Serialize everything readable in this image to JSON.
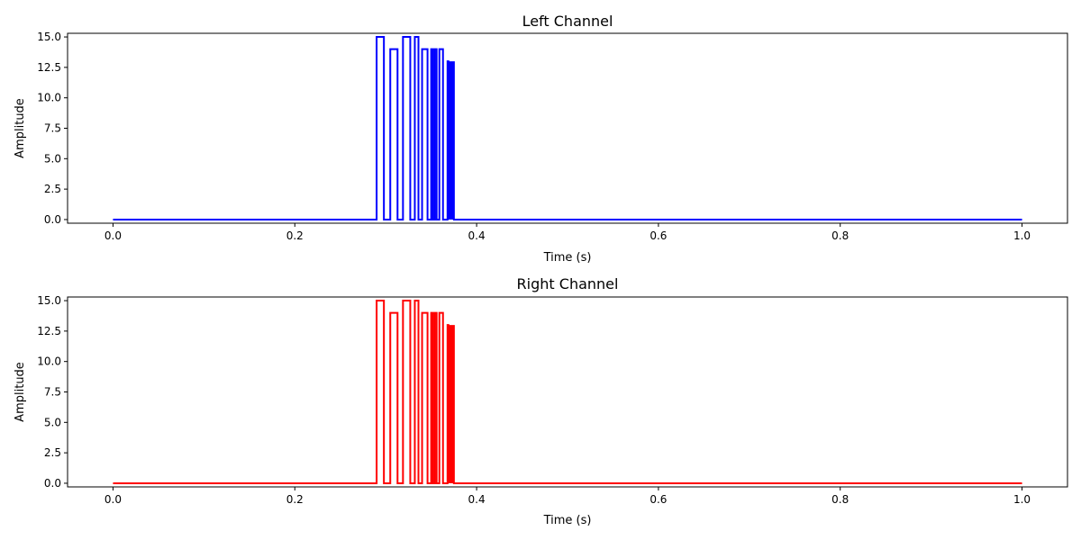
{
  "chart_data": [
    {
      "type": "line",
      "title": "Left Channel",
      "xlabel": "Time (s)",
      "ylabel": "Amplitude",
      "xlim": [
        -0.05,
        1.05
      ],
      "ylim": [
        -0.3,
        15.3
      ],
      "xticks": [
        0.0,
        0.2,
        0.4,
        0.6,
        0.8,
        1.0
      ],
      "xtick_labels": [
        "0.0",
        "0.2",
        "0.4",
        "0.6",
        "0.8",
        "1.0"
      ],
      "yticks": [
        0.0,
        2.5,
        5.0,
        7.5,
        10.0,
        12.5,
        15.0
      ],
      "ytick_labels": [
        "0.0",
        "2.5",
        "5.0",
        "7.5",
        "10.0",
        "12.5",
        "15.0"
      ],
      "grid": false,
      "series": [
        {
          "color": "#0000ff",
          "x": [
            0.0,
            0.29,
            0.29,
            0.298,
            0.298,
            0.305,
            0.305,
            0.313,
            0.313,
            0.319,
            0.319,
            0.327,
            0.327,
            0.332,
            0.332,
            0.336,
            0.336,
            0.34,
            0.34,
            0.346,
            0.346,
            0.35,
            0.35,
            0.352,
            0.352,
            0.354,
            0.354,
            0.356,
            0.356,
            0.359,
            0.359,
            0.363,
            0.363,
            0.368,
            0.368,
            0.369,
            0.369,
            0.371,
            0.371,
            0.373,
            0.373,
            0.375,
            0.375,
            1.0
          ],
          "y": [
            0,
            0,
            15,
            15,
            0,
            0,
            14,
            14,
            0,
            0,
            15,
            15,
            0,
            0,
            15,
            15,
            0,
            0,
            14,
            14,
            0,
            0,
            14,
            14,
            0,
            0,
            14,
            14,
            0,
            0,
            14,
            14,
            0,
            0,
            13,
            13,
            0,
            13,
            0,
            13,
            0,
            13,
            0,
            0
          ]
        }
      ]
    },
    {
      "type": "line",
      "title": "Right Channel",
      "xlabel": "Time (s)",
      "ylabel": "Amplitude",
      "xlim": [
        -0.05,
        1.05
      ],
      "ylim": [
        -0.3,
        15.3
      ],
      "xticks": [
        0.0,
        0.2,
        0.4,
        0.6,
        0.8,
        1.0
      ],
      "xtick_labels": [
        "0.0",
        "0.2",
        "0.4",
        "0.6",
        "0.8",
        "1.0"
      ],
      "yticks": [
        0.0,
        2.5,
        5.0,
        7.5,
        10.0,
        12.5,
        15.0
      ],
      "ytick_labels": [
        "0.0",
        "2.5",
        "5.0",
        "7.5",
        "10.0",
        "12.5",
        "15.0"
      ],
      "grid": false,
      "series": [
        {
          "color": "#ff0000",
          "x": [
            0.0,
            0.29,
            0.29,
            0.298,
            0.298,
            0.305,
            0.305,
            0.313,
            0.313,
            0.319,
            0.319,
            0.327,
            0.327,
            0.332,
            0.332,
            0.336,
            0.336,
            0.34,
            0.34,
            0.346,
            0.346,
            0.35,
            0.35,
            0.352,
            0.352,
            0.354,
            0.354,
            0.356,
            0.356,
            0.359,
            0.359,
            0.363,
            0.363,
            0.368,
            0.368,
            0.369,
            0.369,
            0.371,
            0.371,
            0.373,
            0.373,
            0.375,
            0.375,
            1.0
          ],
          "y": [
            0,
            0,
            15,
            15,
            0,
            0,
            14,
            14,
            0,
            0,
            15,
            15,
            0,
            0,
            15,
            15,
            0,
            0,
            14,
            14,
            0,
            0,
            14,
            14,
            0,
            0,
            14,
            14,
            0,
            0,
            14,
            14,
            0,
            0,
            13,
            13,
            0,
            13,
            0,
            13,
            0,
            13,
            0,
            0
          ]
        }
      ]
    }
  ]
}
